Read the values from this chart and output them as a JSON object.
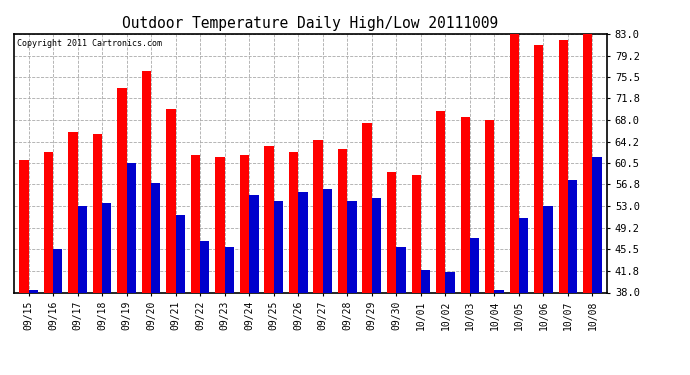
{
  "title": "Outdoor Temperature Daily High/Low 20111009",
  "copyright": "Copyright 2011 Cartronics.com",
  "dates": [
    "09/15",
    "09/16",
    "09/17",
    "09/18",
    "09/19",
    "09/20",
    "09/21",
    "09/22",
    "09/23",
    "09/24",
    "09/25",
    "09/26",
    "09/27",
    "09/28",
    "09/29",
    "09/30",
    "10/01",
    "10/02",
    "10/03",
    "10/04",
    "10/05",
    "10/06",
    "10/07",
    "10/08"
  ],
  "highs": [
    61.0,
    62.5,
    66.0,
    65.5,
    73.5,
    76.5,
    70.0,
    62.0,
    61.5,
    62.0,
    63.5,
    62.5,
    64.5,
    63.0,
    67.5,
    59.0,
    58.5,
    69.5,
    68.5,
    68.0,
    83.0,
    81.0,
    82.0,
    83.0
  ],
  "lows": [
    38.5,
    45.5,
    53.0,
    53.5,
    60.5,
    57.0,
    51.5,
    47.0,
    46.0,
    55.0,
    54.0,
    55.5,
    56.0,
    54.0,
    54.5,
    46.0,
    42.0,
    41.5,
    47.5,
    38.5,
    51.0,
    53.0,
    57.5,
    61.5
  ],
  "high_color": "#ff0000",
  "low_color": "#0000cc",
  "background_color": "#ffffff",
  "grid_color": "#aaaaaa",
  "ylim_min": 38.0,
  "ylim_max": 83.0,
  "yticks": [
    38.0,
    41.8,
    45.5,
    49.2,
    53.0,
    56.8,
    60.5,
    64.2,
    68.0,
    71.8,
    75.5,
    79.2,
    83.0
  ]
}
